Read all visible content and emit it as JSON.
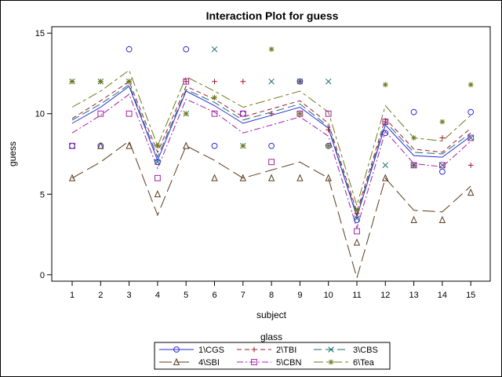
{
  "chart_data": {
    "type": "line",
    "title": "Interaction Plot for guess",
    "xlabel": "subject",
    "ylabel": "guess",
    "x": [
      1,
      2,
      3,
      4,
      5,
      6,
      7,
      8,
      9,
      10,
      11,
      12,
      13,
      14,
      15
    ],
    "x_ticks": [
      "1",
      "2",
      "3",
      "4",
      "5",
      "6",
      "7",
      "8",
      "9",
      "10",
      "11",
      "12",
      "13",
      "14",
      "15"
    ],
    "y_ticks": [
      "0",
      "5",
      "10",
      "15"
    ],
    "ylim": [
      -0.4,
      15.4
    ],
    "grid": false,
    "legend": {
      "title": "glass",
      "placement": "bottom"
    },
    "series": [
      {
        "name": "1\\CGS",
        "color": "#2b2bd9",
        "marker": "circle",
        "dash": "solid",
        "points": [
          8,
          8,
          14,
          7,
          14,
          8,
          10,
          8,
          12,
          8,
          3.4,
          8.8,
          10.1,
          6.4,
          10.1
        ],
        "line": [
          9.4,
          10.4,
          11.7,
          7.1,
          11.4,
          10.5,
          9.4,
          9.9,
          10.4,
          9.1,
          3.6,
          9.3,
          7.4,
          7.3,
          8.6
        ]
      },
      {
        "name": "2\\TBI",
        "color": "#a11a2e",
        "marker": "plus",
        "dash": "dash",
        "points": [
          12,
          12,
          12,
          8,
          12,
          12,
          12,
          10,
          12,
          9,
          3.8,
          9.5,
          6.8,
          8.5,
          6.8
        ],
        "line": [
          9.7,
          10.8,
          12,
          7.6,
          11.7,
          10.9,
          9.8,
          10.3,
          10.8,
          9.4,
          3.9,
          9.7,
          7.8,
          7.6,
          9.1
        ]
      },
      {
        "name": "3\\CBS",
        "color": "#1b6e6e",
        "marker": "x",
        "dash": "dash-long",
        "points": [
          12,
          12,
          12,
          7,
          10,
          14,
          8,
          12,
          12,
          12,
          3.5,
          6.8,
          6.8,
          6.8,
          8.5
        ],
        "line": [
          9.6,
          10.6,
          11.8,
          7.3,
          11.5,
          10.7,
          9.6,
          10.1,
          10.6,
          9.2,
          3.7,
          9.5,
          7.6,
          7.5,
          8.8
        ]
      },
      {
        "name": "4\\SBI",
        "color": "#5a3b1c",
        "marker": "triangle",
        "dash": "long",
        "points": [
          6,
          8,
          8,
          5,
          8,
          6,
          6,
          6,
          6,
          6,
          2,
          6,
          3.4,
          3.4,
          5.1
        ],
        "line": [
          6,
          7,
          8.3,
          3.7,
          8,
          7.1,
          6,
          6.5,
          7,
          6,
          -0.2,
          6,
          4,
          3.9,
          5.5
        ]
      },
      {
        "name": "5\\CBN",
        "color": "#a61fa6",
        "marker": "square",
        "dash": "dash-dot",
        "points": [
          8,
          10,
          10,
          6,
          12,
          10,
          10,
          7,
          10,
          10,
          2.7,
          9.5,
          6.8,
          6.8,
          8.5
        ],
        "line": [
          8.8,
          9.9,
          11.2,
          6.6,
          10.9,
          10.1,
          8.8,
          9.3,
          9.8,
          8.6,
          2.9,
          8.9,
          6.9,
          6.7,
          8.3
        ]
      },
      {
        "name": "6\\Tea",
        "color": "#6d7a1c",
        "marker": "star",
        "dash": "dash-long-short",
        "points": [
          12,
          12,
          12,
          8,
          10,
          11,
          8,
          14,
          10,
          8,
          4,
          11.8,
          8.5,
          9.5,
          11.8
        ],
        "line": [
          10.4,
          11.4,
          12.7,
          8,
          12.3,
          11.4,
          10.4,
          10.9,
          11.4,
          10.1,
          4.3,
          10.5,
          8.5,
          8.3,
          9.9
        ]
      }
    ]
  }
}
